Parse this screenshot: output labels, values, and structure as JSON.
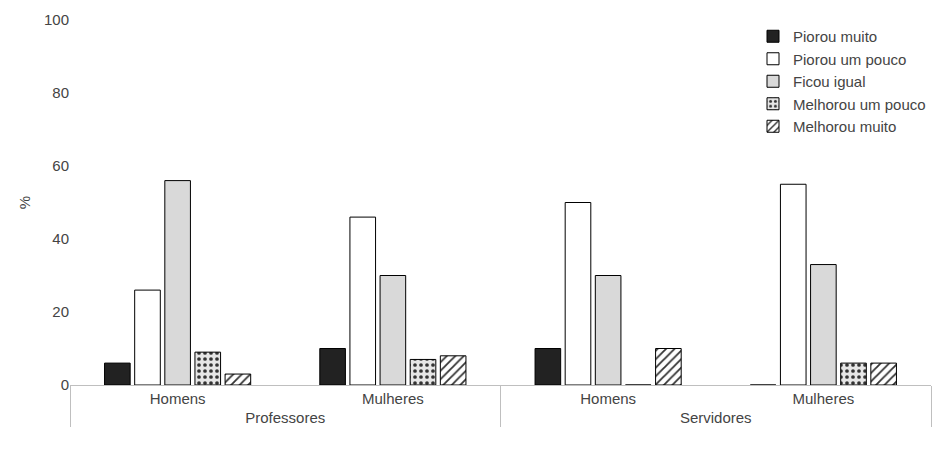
{
  "chart_data": {
    "type": "bar",
    "categories": [
      "Homens",
      "Mulheres",
      "Homens",
      "Mulheres"
    ],
    "category_groups": [
      "Professores",
      "Professores",
      "Servidores",
      "Servidores"
    ],
    "y_label": "%",
    "ylim": [
      0,
      100
    ],
    "yticks": [
      0,
      20,
      40,
      60,
      80,
      100
    ],
    "grid": false,
    "legend": "top right",
    "series": [
      {
        "name": "Piorou muito",
        "color": "#222222",
        "values": [
          6,
          10,
          10,
          0
        ]
      },
      {
        "name": "Piorou um pouco",
        "color": "#ffffff",
        "values": [
          26,
          46,
          50,
          55
        ]
      },
      {
        "name": "Ficou igual",
        "color": "#d9d9d9",
        "values": [
          56,
          30,
          30,
          33
        ]
      },
      {
        "name": "Melhorou um pouco",
        "color": "#e6e6e6",
        "values": [
          9,
          7,
          0,
          6
        ]
      },
      {
        "name": "Melhorou muito",
        "color": "#ffffff",
        "values": [
          3,
          8,
          10,
          6
        ]
      }
    ]
  }
}
